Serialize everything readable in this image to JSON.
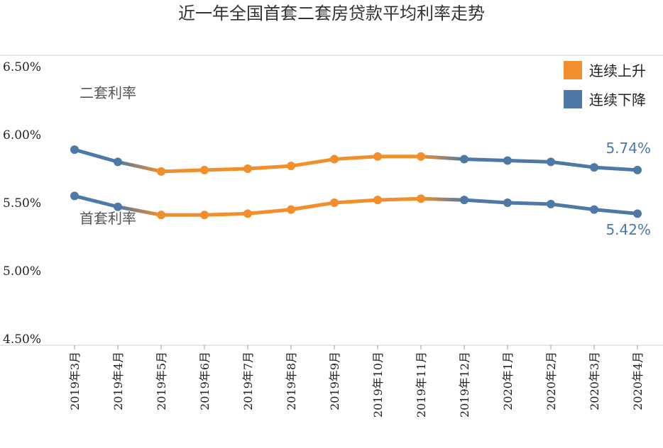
{
  "chart_data": {
    "type": "line",
    "title": "近一年全国首套二套房贷款平均利率走势",
    "categories": [
      "2019年3月",
      "2019年4月",
      "2019年5月",
      "2019年6月",
      "2019年7月",
      "2019年8月",
      "2019年9月",
      "2019年10月",
      "2019年11月",
      "2019年12月",
      "2020年1月",
      "2020年2月",
      "2020年3月",
      "2020年4月"
    ],
    "yticks": [
      "6.50%",
      "6.00%",
      "5.50%",
      "5.00%",
      "4.50%"
    ],
    "ylim": [
      4.5,
      6.5
    ],
    "series": [
      {
        "name": "二套利率",
        "values": [
          5.89,
          5.8,
          5.73,
          5.74,
          5.75,
          5.77,
          5.82,
          5.84,
          5.84,
          5.82,
          5.81,
          5.8,
          5.76,
          5.74
        ]
      },
      {
        "name": "首套利率",
        "values": [
          5.55,
          5.47,
          5.41,
          5.41,
          5.42,
          5.45,
          5.5,
          5.52,
          5.53,
          5.52,
          5.5,
          5.49,
          5.45,
          5.42
        ]
      }
    ],
    "end_labels": [
      "5.74%",
      "5.42%"
    ],
    "legend": {
      "position": "top-right",
      "items": [
        {
          "label": "连续上升",
          "color": "#f28e2b"
        },
        {
          "label": "连续下降",
          "color": "#4e79a7"
        }
      ]
    },
    "rising_range": [
      2,
      8
    ],
    "grid": false
  }
}
